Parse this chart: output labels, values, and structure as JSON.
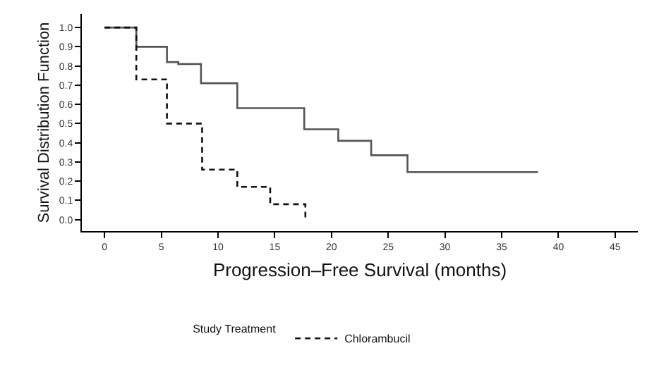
{
  "chart_data": {
    "type": "step",
    "xlabel": "Progression–Free Survival (months)",
    "ylabel": "Survival Distribution Function",
    "legend_title": "Study Treatment",
    "series": [
      {
        "color": "#555555",
        "line_style": "solid",
        "x": [
          0,
          2.8,
          2.8,
          5.5,
          6.5,
          8.5,
          11.7,
          17.6,
          20.6,
          23.5,
          26.7,
          38.2
        ],
        "values": [
          1.0,
          0.97,
          0.9,
          0.82,
          0.81,
          0.71,
          0.58,
          0.47,
          0.41,
          0.335,
          0.247,
          0.247
        ]
      },
      {
        "name": "Chlorambucil",
        "color": "#111111",
        "line_style": "dashed",
        "x": [
          0,
          2.8,
          2.8,
          5.5,
          8.6,
          11.7,
          14.6,
          17.7,
          17.7
        ],
        "values": [
          1.0,
          0.97,
          0.73,
          0.5,
          0.26,
          0.17,
          0.08,
          0.0,
          0.0
        ]
      }
    ],
    "xlim": [
      -2,
      47
    ],
    "xticks": [
      0,
      5,
      10,
      15,
      20,
      25,
      30,
      35,
      40,
      45
    ],
    "ylim": [
      -0.06,
      1.07
    ],
    "yticks": [
      {
        "value": 0,
        "label": "0.0"
      },
      0.1,
      0.2,
      0.3,
      0.4,
      0.5,
      0.6,
      0.7,
      0.8,
      0.9,
      {
        "value": 1,
        "label": "1.0"
      }
    ],
    "legend": "bottom",
    "marker": "none"
  }
}
